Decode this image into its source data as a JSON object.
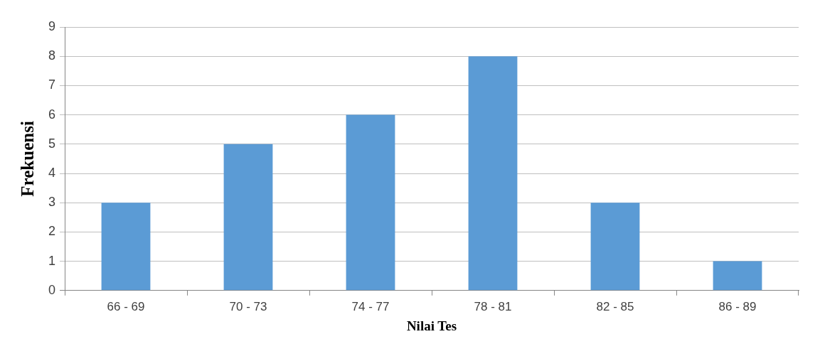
{
  "chart_data": {
    "type": "bar",
    "xlabel": "Nilai Tes",
    "ylabel": "Frekuensi",
    "categories": [
      "66 - 69",
      "70 - 73",
      "74 - 77",
      "78 - 81",
      "82 - 85",
      "86 - 89"
    ],
    "values": [
      3,
      5,
      6,
      8,
      3,
      1
    ],
    "color": "#5b9bd5",
    "ylim": [
      0,
      9
    ],
    "yticks": [
      0,
      1,
      2,
      3,
      4,
      5,
      6,
      7,
      8,
      9
    ],
    "grid": "y",
    "legend": false
  }
}
